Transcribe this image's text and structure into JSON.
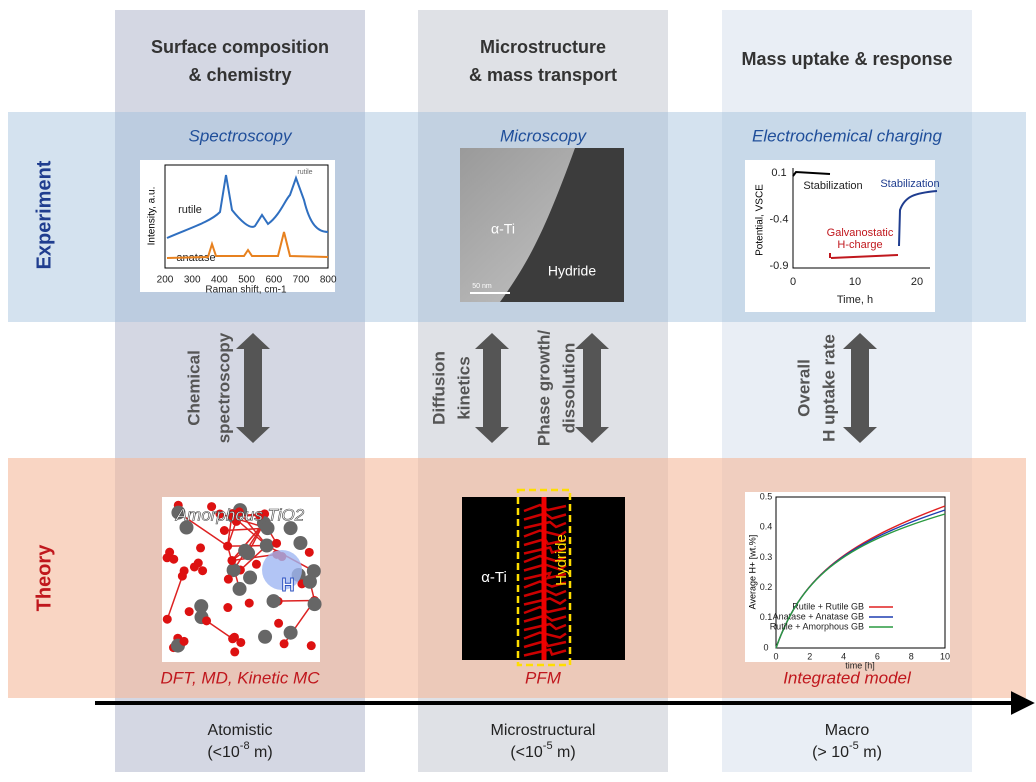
{
  "rows": {
    "experiment": "Experiment",
    "theory": "Theory"
  },
  "columns": [
    {
      "title": [
        "Surface composition",
        "& chemistry"
      ],
      "experiment": "Spectroscopy",
      "links": [
        [
          "Chemical",
          "spectroscopy"
        ]
      ],
      "theory": "DFT, MD, Kinetic MC",
      "scale": {
        "name": "Atomistic",
        "prefix": "(<10",
        "exponent": "-8",
        "suffix": " m)"
      }
    },
    {
      "title": [
        "Microstructure",
        "& mass transport"
      ],
      "experiment": "Microscopy",
      "links": [
        [
          "Diffusion",
          "kinetics"
        ],
        [
          "Phase growth/",
          "dissolution"
        ]
      ],
      "theory": "PFM",
      "scale": {
        "name": "Microstructural",
        "prefix": "(<10",
        "exponent": "-5",
        "suffix": " m)"
      }
    },
    {
      "title": [
        "Mass uptake & response"
      ],
      "experiment": "Electrochemical charging",
      "links": [
        [
          "Overall",
          "H uptake rate"
        ]
      ],
      "theory": "Integrated model",
      "scale": {
        "name": "Macro",
        "prefix": "(> 10",
        "exponent": "-5",
        "suffix": " m)"
      }
    }
  ],
  "insets": {
    "raman": {
      "ylabel": "Intensity, a.u.",
      "xlabel": "Raman shift, cm-1",
      "xticks": [
        "200",
        "300",
        "400",
        "500",
        "600",
        "700",
        "800"
      ],
      "legend": "rutile",
      "series": [
        "rutile",
        "anatase"
      ]
    },
    "micro": {
      "phase": "α-Ti",
      "hydride": "Hydride",
      "scalebar": "50 nm"
    },
    "charging": {
      "ylabel": "Potential, VSCE",
      "xlabel": "Time, h",
      "yticks": [
        "0.1",
        "-0.4",
        "-0.9"
      ],
      "xticks": [
        "0",
        "10",
        "20"
      ],
      "notes": [
        "Stabilization",
        "Stabilization",
        "Galvanostatic",
        "H-charge"
      ]
    },
    "atoms": {
      "label": "Amorphous TiO2",
      "atom": "H"
    },
    "pfm": {
      "phase": "α-Ti",
      "hydride": "Hydride"
    },
    "model": {
      "ylabel": "Average H+ [wt.%]",
      "xlabel": "time [h]",
      "yticks": [
        "0",
        "0.1",
        "0.2",
        "0.3",
        "0.4",
        "0.5"
      ],
      "xticks": [
        "0",
        "2",
        "4",
        "6",
        "8",
        "10"
      ],
      "legend": [
        "Rutile + Rutile GB",
        "Anatase + Anatase GB",
        "Rutile + Amorphous GB"
      ]
    }
  }
}
